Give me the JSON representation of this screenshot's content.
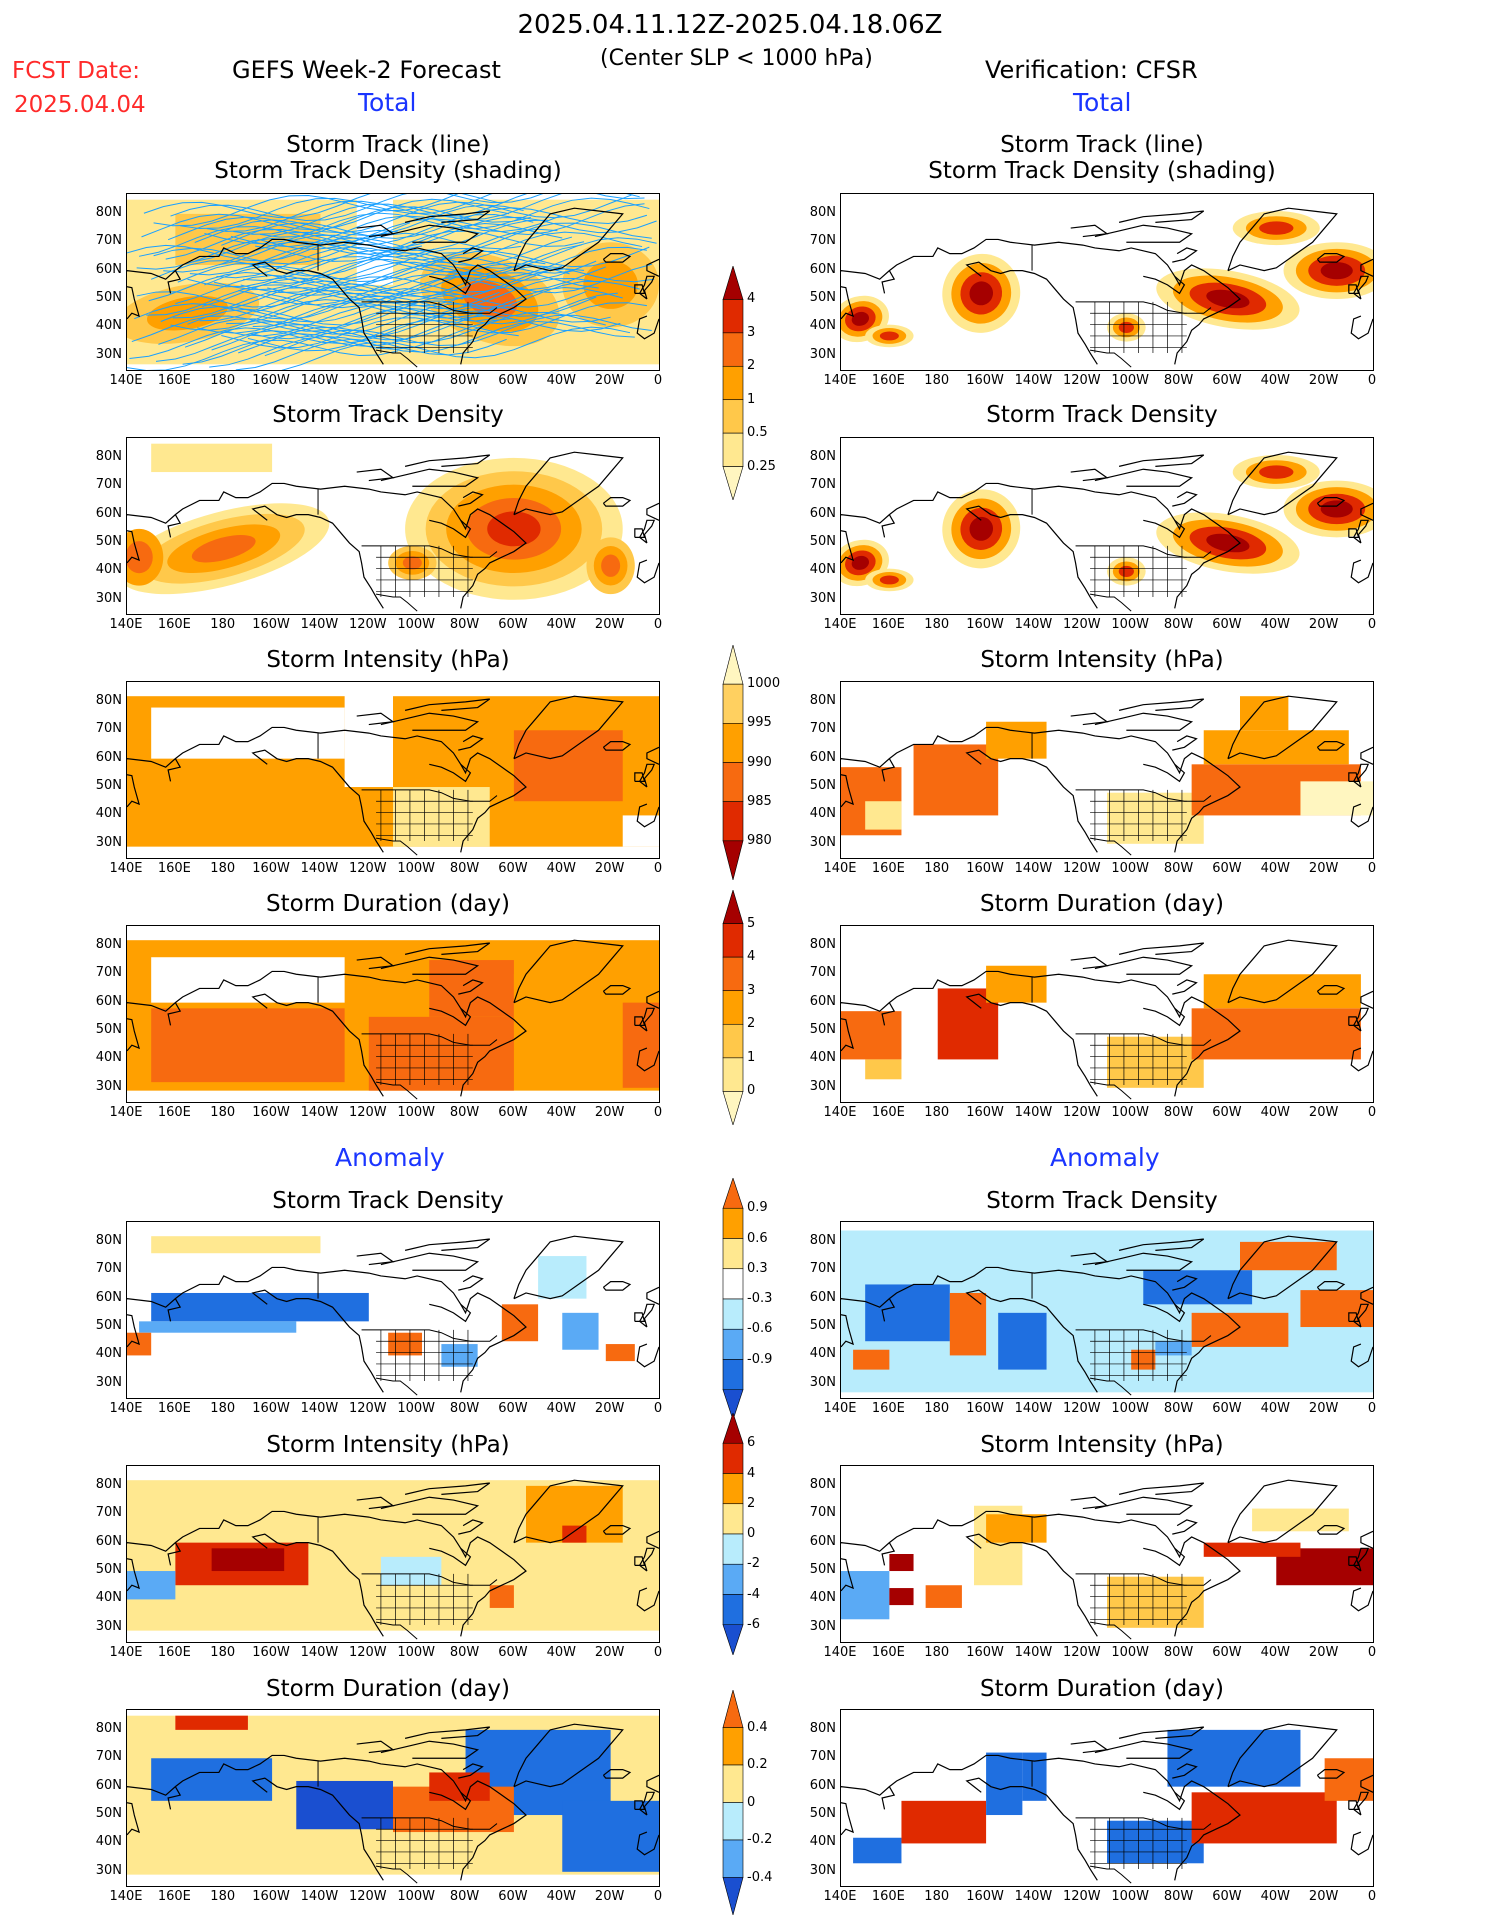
{
  "header": {
    "period": "2025.04.11.12Z-2025.04.18.06Z",
    "subtitle": "(Center SLP < 1000 hPa)",
    "fcst_label": "FCST Date:",
    "fcst_date": "2025.04.04",
    "left_model": "GEFS Week-2 Forecast",
    "right_model": "Verification: CFSR"
  },
  "sections": {
    "total": "Total",
    "anomaly": "Anomaly"
  },
  "titles": {
    "track_line": "Storm Track (line)",
    "track_shading": "Storm Track Density (shading)",
    "density": "Storm Track Density",
    "intensity": "Storm Intensity (hPa)",
    "duration": "Storm Duration (day)"
  },
  "axes": {
    "lat_labels": [
      "80N",
      "70N",
      "60N",
      "50N",
      "40N",
      "30N"
    ],
    "lon_labels": [
      "140E",
      "160E",
      "180",
      "160W",
      "140W",
      "120W",
      "100W",
      "80W",
      "60W",
      "40W",
      "20W",
      "0"
    ]
  },
  "colorbars": {
    "track_density": {
      "labels": [
        "4",
        "3",
        "2",
        "1",
        "0.5",
        "0.25"
      ],
      "colors": [
        "#a50000",
        "#e02a00",
        "#f76a10",
        "#ffa000",
        "#ffc84a",
        "#ffe890",
        "#fff6c0"
      ]
    },
    "intensity": {
      "labels": [
        "1000",
        "995",
        "990",
        "985",
        "980"
      ],
      "colors": [
        "#fff6c0",
        "#ffd060",
        "#ffa000",
        "#f76a10",
        "#e02a00",
        "#a50000"
      ]
    },
    "duration": {
      "labels": [
        "5",
        "4",
        "3",
        "2",
        "1",
        "0"
      ],
      "colors": [
        "#a50000",
        "#e02a00",
        "#f76a10",
        "#ffa000",
        "#ffc84a",
        "#ffe890",
        "#fff6c0"
      ]
    },
    "anom_density": {
      "labels": [
        "0.9",
        "0.6",
        "0.3",
        "-0.3",
        "-0.6",
        "-0.9"
      ],
      "colors": [
        "#f76a10",
        "#ffa000",
        "#ffe890",
        "#ffffff",
        "#b8ecfc",
        "#5aaaf5",
        "#1f6fe0",
        "#1a4fd0"
      ]
    },
    "anom_intensity": {
      "labels": [
        "6",
        "4",
        "2",
        "0",
        "-2",
        "-4",
        "-6"
      ],
      "colors": [
        "#a50000",
        "#e02a00",
        "#ffa000",
        "#ffe890",
        "#b8ecfc",
        "#5aaaf5",
        "#1f6fe0",
        "#1a4fd0"
      ]
    },
    "anom_duration": {
      "labels": [
        "0.4",
        "0.2",
        "0",
        "-0.2",
        "-0.4"
      ],
      "colors": [
        "#f76a10",
        "#ffa000",
        "#ffe890",
        "#b8ecfc",
        "#5aaaf5",
        "#1a4fd0"
      ]
    }
  }
}
